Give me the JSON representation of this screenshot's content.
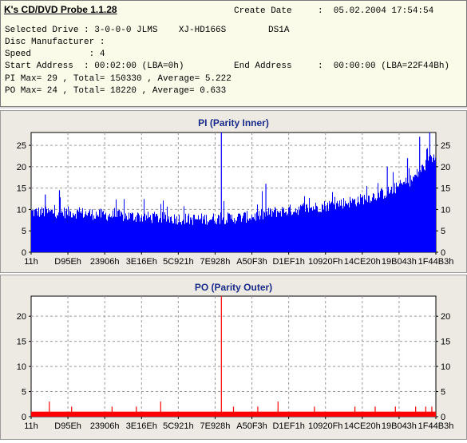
{
  "header": {
    "app_title": "K's CD/DVD Probe 1.1.28",
    "create_date_label": "Create Date",
    "create_date_value": ":  05.02.2004 17:54:54",
    "drive_line": "Selected Drive : 3-0-0-0 JLMS    XJ-HD166S        DS1A",
    "manufacturer_line": "Disc Manufacturer :",
    "speed_line": "Speed           : 4",
    "start_line": "Start Address  : 00:02:00 (LBA=0h)",
    "end_label": "End Address",
    "end_value": ":  00:00:00 (LBA=22F44Bh)",
    "pi_line": "PI Max= 29 , Total= 150330 , Average= 5.222",
    "po_line": "PO Max= 24 , Total= 18220 , Average= 0.633"
  },
  "chart_data": [
    {
      "type": "bar",
      "title": "PI (Parity Inner)",
      "color": "#0000ff",
      "ylim": [
        0,
        28
      ],
      "yticks": [
        0,
        5,
        10,
        15,
        20,
        25
      ],
      "xticks": [
        "11h",
        "D95Eh",
        "23906h",
        "3E16Eh",
        "5C921h",
        "7E928h",
        "A50F3h",
        "D1EF1h",
        "10920Fh",
        "14CE20h",
        "19B043h",
        "1F44B3h"
      ],
      "grid": true,
      "profile": [
        {
          "x": 0.0,
          "y": 9.4
        },
        {
          "x": 0.1,
          "y": 9.3
        },
        {
          "x": 0.2,
          "y": 8.6
        },
        {
          "x": 0.3,
          "y": 8.1
        },
        {
          "x": 0.4,
          "y": 7.7
        },
        {
          "x": 0.5,
          "y": 8.0
        },
        {
          "x": 0.56,
          "y": 8.5
        },
        {
          "x": 0.6,
          "y": 9.4
        },
        {
          "x": 0.7,
          "y": 10.5
        },
        {
          "x": 0.8,
          "y": 12.0
        },
        {
          "x": 0.88,
          "y": 14.0
        },
        {
          "x": 0.94,
          "y": 17.0
        },
        {
          "x": 1.0,
          "y": 23.0
        }
      ],
      "spikes": [
        {
          "x": 0.47,
          "y": 28
        },
        {
          "x": 0.58,
          "y": 16
        },
        {
          "x": 0.07,
          "y": 14.5
        },
        {
          "x": 0.035,
          "y": 13.5
        },
        {
          "x": 0.96,
          "y": 27
        },
        {
          "x": 0.985,
          "y": 28
        },
        {
          "x": 0.93,
          "y": 22
        },
        {
          "x": 0.88,
          "y": 20
        }
      ]
    },
    {
      "type": "bar",
      "title": "PO (Parity Outer)",
      "color": "#ff0000",
      "ylim": [
        0,
        24
      ],
      "yticks": [
        0,
        5,
        10,
        15,
        20
      ],
      "xticks": [
        "11h",
        "D95Eh",
        "23906h",
        "3E16Eh",
        "5C921h",
        "7E928h",
        "A50F3h",
        "D1EF1h",
        "10920Fh",
        "14CE20h",
        "19B043h",
        "1F44B3h"
      ],
      "grid": true,
      "baseline": 1,
      "spikes": [
        {
          "x": 0.47,
          "y": 24
        },
        {
          "x": 0.045,
          "y": 3
        },
        {
          "x": 0.32,
          "y": 3
        },
        {
          "x": 0.61,
          "y": 3
        },
        {
          "x": 0.1,
          "y": 2
        },
        {
          "x": 0.2,
          "y": 2
        },
        {
          "x": 0.26,
          "y": 2
        },
        {
          "x": 0.5,
          "y": 2
        },
        {
          "x": 0.56,
          "y": 2
        },
        {
          "x": 0.7,
          "y": 2
        },
        {
          "x": 0.8,
          "y": 2
        },
        {
          "x": 0.85,
          "y": 2
        },
        {
          "x": 0.9,
          "y": 2
        },
        {
          "x": 0.95,
          "y": 2
        },
        {
          "x": 0.975,
          "y": 2
        },
        {
          "x": 0.99,
          "y": 2
        }
      ]
    }
  ]
}
